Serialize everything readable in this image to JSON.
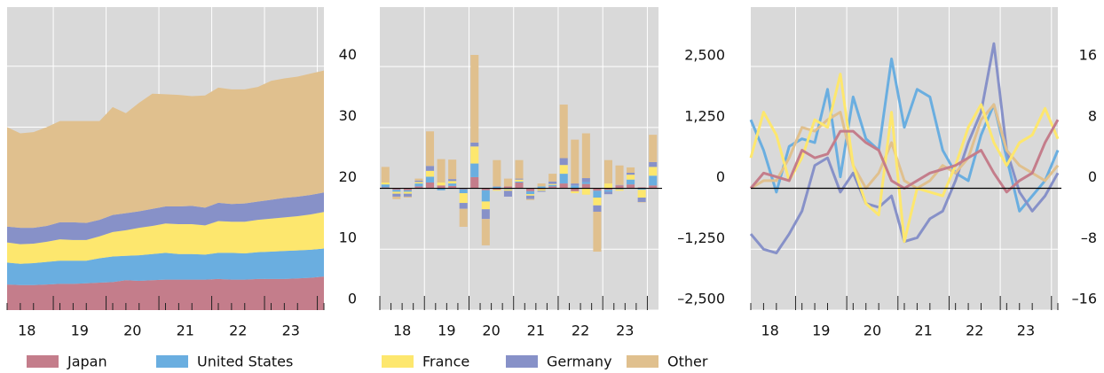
{
  "chart_data": [
    {
      "type": "area",
      "categories": [
        null,
        "18",
        null,
        null,
        null,
        "19",
        null,
        null,
        null,
        "20",
        null,
        null,
        null,
        "21",
        null,
        null,
        null,
        "22",
        null,
        null,
        null,
        "23",
        null,
        null,
        null
      ],
      "series": [
        {
          "name": "Japan",
          "color": "#c47d8b",
          "values": [
            4.2,
            4.1,
            4.1,
            4.2,
            4.3,
            4.3,
            4.4,
            4.5,
            4.6,
            4.9,
            4.8,
            4.9,
            5.0,
            5.0,
            5.0,
            5.0,
            5.1,
            5.0,
            5.0,
            5.1,
            5.1,
            5.1,
            5.2,
            5.3,
            5.5
          ]
        },
        {
          "name": "United States",
          "color": "#6aaee0",
          "values": [
            3.6,
            3.5,
            3.6,
            3.7,
            3.8,
            3.8,
            3.7,
            4.0,
            4.2,
            4.0,
            4.2,
            4.3,
            4.4,
            4.2,
            4.2,
            4.1,
            4.3,
            4.4,
            4.3,
            4.4,
            4.5,
            4.6,
            4.6,
            4.6,
            4.6
          ]
        },
        {
          "name": "France",
          "color": "#fde76e",
          "values": [
            3.3,
            3.2,
            3.2,
            3.3,
            3.5,
            3.4,
            3.4,
            3.6,
            4.0,
            4.2,
            4.5,
            4.6,
            4.8,
            4.9,
            4.9,
            4.8,
            5.2,
            5.1,
            5.2,
            5.3,
            5.4,
            5.5,
            5.6,
            5.8,
            6.0
          ]
        },
        {
          "name": "Germany",
          "color": "#8791c8",
          "values": [
            2.6,
            2.7,
            2.6,
            2.6,
            2.8,
            2.9,
            2.8,
            2.7,
            2.8,
            2.8,
            2.7,
            2.8,
            2.8,
            2.9,
            3.0,
            2.9,
            3.0,
            2.9,
            3.0,
            3.0,
            3.1,
            3.2,
            3.2,
            3.2,
            3.2
          ]
        },
        {
          "name": "Other",
          "color": "#e0c08e",
          "values": [
            16.3,
            15.5,
            15.7,
            16.2,
            16.6,
            16.6,
            16.7,
            16.2,
            17.7,
            16.4,
            17.8,
            18.9,
            18.4,
            18.3,
            18.0,
            18.4,
            18.9,
            18.8,
            18.7,
            18.8,
            19.5,
            19.6,
            19.7,
            19.9,
            20.0
          ]
        }
      ],
      "ylim": [
        0,
        49.7
      ],
      "yticks": [
        0,
        10,
        20,
        30,
        40
      ],
      "grid": true
    },
    {
      "type": "bar",
      "categories": [
        null,
        "18",
        null,
        null,
        null,
        "19",
        null,
        null,
        null,
        "20",
        null,
        null,
        null,
        "21",
        null,
        null,
        null,
        "22",
        null,
        null,
        null,
        "23",
        null,
        null,
        null
      ],
      "series": [
        {
          "color": "#c47d8b",
          "values": [
            20,
            -30,
            -40,
            40,
            120,
            60,
            50,
            -20,
            230,
            -40,
            -30,
            40,
            120,
            -60,
            -20,
            40,
            100,
            -60,
            90,
            -50,
            -30,
            60,
            80,
            20,
            60
          ]
        },
        {
          "color": "#6aaee0",
          "values": [
            60,
            -40,
            -30,
            60,
            120,
            -40,
            50,
            -80,
            280,
            -230,
            30,
            -20,
            20,
            -60,
            40,
            30,
            200,
            60,
            40,
            -140,
            -40,
            -20,
            100,
            -30,
            200
          ]
        },
        {
          "color": "#fde76e",
          "values": [
            40,
            -40,
            -40,
            30,
            120,
            60,
            50,
            -200,
            350,
            -160,
            -20,
            -30,
            40,
            -30,
            -30,
            20,
            180,
            -40,
            -130,
            -160,
            100,
            -30,
            100,
            -160,
            180
          ]
        },
        {
          "color": "#8791c8",
          "values": [
            0,
            -60,
            -60,
            30,
            100,
            0,
            40,
            -120,
            80,
            -200,
            10,
            -120,
            20,
            -70,
            -20,
            50,
            140,
            40,
            80,
            -130,
            -50,
            10,
            40,
            -90,
            100
          ]
        },
        {
          "color": "#e0c08e",
          "values": [
            320,
            -50,
            -20,
            40,
            710,
            480,
            400,
            -370,
            1800,
            -540,
            540,
            160,
            380,
            -20,
            60,
            160,
            1100,
            900,
            920,
            -820,
            480,
            400,
            110,
            -10,
            560
          ]
        }
      ],
      "ylim": [
        -2500,
        3722
      ],
      "yticks": [
        {
          "value": -2500,
          "label": "–2,500"
        },
        {
          "value": -1250,
          "label": "–1,250"
        },
        0,
        {
          "value": 1250,
          "label": "1,250"
        },
        {
          "value": 2500,
          "label": "2,500"
        }
      ],
      "grid": true
    },
    {
      "type": "line",
      "categories": [
        null,
        "18",
        null,
        null,
        null,
        "19",
        null,
        null,
        null,
        "20",
        null,
        null,
        null,
        "21",
        null,
        null,
        null,
        "22",
        null,
        null,
        null,
        "23",
        null,
        null,
        null
      ],
      "series": [
        {
          "color": "#6aaee0",
          "values": [
            9,
            5,
            -0.5,
            5.5,
            6.5,
            6,
            13,
            1.5,
            12,
            6.5,
            5,
            17,
            8,
            13,
            12,
            5,
            2,
            1,
            7,
            11,
            4,
            -3,
            -1,
            1,
            5
          ]
        },
        {
          "color": "#8791c8",
          "values": [
            -6,
            -8,
            -8.5,
            -6,
            -3,
            3,
            4,
            -0.5,
            2,
            -2,
            -2.5,
            -1,
            -7,
            -6.5,
            -4,
            -3,
            1,
            6,
            10,
            19,
            5,
            -0.5,
            -3,
            -1,
            2
          ]
        },
        {
          "color": "#e0c08e",
          "values": [
            0,
            1,
            1,
            4,
            8,
            7.5,
            9,
            10,
            3,
            0,
            2,
            6,
            1,
            0,
            1,
            3,
            2,
            4,
            9,
            11,
            5,
            3,
            2,
            1,
            3
          ]
        },
        {
          "color": "#fde76e",
          "values": [
            4,
            10,
            7,
            1,
            4,
            9,
            8,
            15,
            3,
            -2,
            -3.5,
            10,
            -7,
            0,
            -0.5,
            -1,
            3,
            8,
            11,
            6,
            3,
            6,
            7,
            10.5,
            6.5
          ]
        },
        {
          "color": "#c47d8b",
          "values": [
            0,
            2,
            1.5,
            1,
            5,
            4,
            4.5,
            7.5,
            7.5,
            6,
            5,
            1,
            0,
            1,
            2,
            2.5,
            3,
            4,
            5,
            2,
            -0.5,
            1,
            2,
            6,
            9
          ]
        }
      ],
      "ylim": [
        -16,
        23.8
      ],
      "yticks": [
        {
          "value": -16,
          "label": "–16"
        },
        {
          "value": -8,
          "label": "–8"
        },
        0,
        8,
        16
      ],
      "grid": true
    }
  ]
}
